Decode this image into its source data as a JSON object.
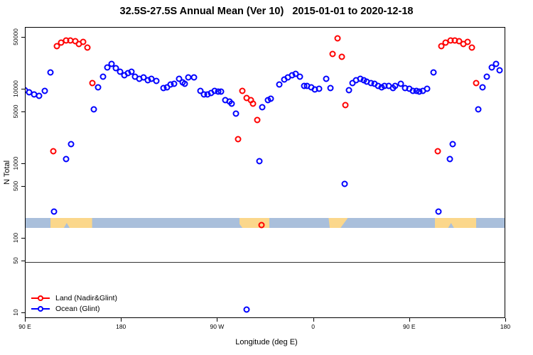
{
  "title": "32.5S-27.5S Annual Mean (Ver 10)   2015-01-01 to 2020-12-18",
  "axes": {
    "x": {
      "label": "Longitude (deg E)",
      "range_deg": [
        90,
        540
      ],
      "ticks": [
        {
          "d": 90,
          "label": "90 E"
        },
        {
          "d": 180,
          "label": "180"
        },
        {
          "d": 270,
          "label": "90 W"
        },
        {
          "d": 360,
          "label": "0"
        },
        {
          "d": 450,
          "label": "90 E"
        },
        {
          "d": 540,
          "label": "180"
        }
      ]
    },
    "y": {
      "label": "N Total",
      "scale": "log",
      "ticks": [
        {
          "v": 50000,
          "label": "50000"
        },
        {
          "v": 10000,
          "label": "10000"
        },
        {
          "v": 5000,
          "label": "5000"
        },
        {
          "v": 1000,
          "label": "1000"
        },
        {
          "v": 500,
          "label": "500"
        },
        {
          "v": 100,
          "label": "100"
        },
        {
          "v": 50,
          "label": "50"
        },
        {
          "v": 10,
          "label": "10"
        }
      ]
    }
  },
  "legend": [
    {
      "label": "Land (Nadir&Glint)",
      "color": "#FF0000"
    },
    {
      "label": "Ocean (Glint)",
      "color": "#0000FF"
    }
  ],
  "reference_line": {
    "value": 47
  },
  "map_strip": {
    "ocean_color": "#A9BFDB",
    "land_color": "#FBD78B",
    "land_segments": [
      {
        "from": 114,
        "to": 153,
        "shape": "australia"
      },
      {
        "from": 291,
        "to": 319,
        "shape": "samerica"
      },
      {
        "from": 374.5,
        "to": 392.5,
        "shape": "africa"
      },
      {
        "from": 474,
        "to": 513,
        "shape": "australia"
      }
    ]
  },
  "chart_data": {
    "type": "scatter",
    "title": "32.5S-27.5S Annual Mean (Ver 10)   2015-01-01 to 2020-12-18",
    "xlabel": "Longitude (deg E)",
    "ylabel": "N Total",
    "xlim": [
      90,
      540
    ],
    "ylim": [
      8,
      67000
    ],
    "yscale": "log",
    "note": "x axis spans 450 deg: 90E,180,90W,0,90E,180 — the 90E-180 segment repeats",
    "series": [
      {
        "name": "Land (Nadir&Glint)",
        "color": "#FF0000",
        "points": [
          [
            116.5,
            1450
          ],
          [
            120,
            37000
          ],
          [
            124,
            41500
          ],
          [
            128.5,
            44500
          ],
          [
            132.5,
            44500
          ],
          [
            137,
            43500
          ],
          [
            140.5,
            40000
          ],
          [
            144.5,
            42500
          ],
          [
            148.5,
            35500
          ],
          [
            153,
            11800
          ],
          [
            290,
            2100
          ],
          [
            294,
            9300
          ],
          [
            298,
            7500
          ],
          [
            301.5,
            7100
          ],
          [
            303.5,
            6300
          ],
          [
            308,
            3800
          ],
          [
            311.5,
            150
          ],
          [
            378.5,
            29000
          ],
          [
            383,
            47500
          ],
          [
            387,
            27000
          ],
          [
            390.5,
            6100
          ],
          [
            476.5,
            1450
          ],
          [
            480,
            37000
          ],
          [
            484,
            41500
          ],
          [
            488.5,
            44500
          ],
          [
            492.5,
            44500
          ],
          [
            497,
            43500
          ],
          [
            500.5,
            40000
          ],
          [
            504.5,
            42500
          ],
          [
            508.5,
            35500
          ],
          [
            513,
            11800
          ]
        ]
      },
      {
        "name": "Ocean (Glint)",
        "color": "#0000FF",
        "points": [
          [
            90,
            9500
          ],
          [
            94,
            8900
          ],
          [
            98.5,
            8300
          ],
          [
            103.5,
            8100
          ],
          [
            108.5,
            9400
          ],
          [
            114,
            16500
          ],
          [
            117.5,
            225
          ],
          [
            128.5,
            1150
          ],
          [
            133,
            1800
          ],
          [
            154.5,
            5300
          ],
          [
            158.5,
            10500
          ],
          [
            163,
            14500
          ],
          [
            167.5,
            19500
          ],
          [
            171.5,
            21500
          ],
          [
            175,
            19000
          ],
          [
            179.5,
            16800
          ],
          [
            183,
            15200
          ],
          [
            186.5,
            16200
          ],
          [
            190,
            16900
          ],
          [
            193,
            14600
          ],
          [
            197.5,
            13700
          ],
          [
            201.5,
            14300
          ],
          [
            205,
            13100
          ],
          [
            208.5,
            13700
          ],
          [
            213,
            12800
          ],
          [
            219.5,
            10300
          ],
          [
            223,
            10500
          ],
          [
            226.5,
            11500
          ],
          [
            229.5,
            11700
          ],
          [
            234.5,
            13700
          ],
          [
            237.5,
            12200
          ],
          [
            239.5,
            11700
          ],
          [
            243,
            14300
          ],
          [
            248.5,
            14300
          ],
          [
            254.5,
            9300
          ],
          [
            257.5,
            8300
          ],
          [
            261,
            8300
          ],
          [
            264.5,
            8700
          ],
          [
            267.5,
            9300
          ],
          [
            271,
            9100
          ],
          [
            274,
            9100
          ],
          [
            278,
            7100
          ],
          [
            281.5,
            6700
          ],
          [
            284,
            6300
          ],
          [
            287.5,
            4600
          ],
          [
            298,
            11
          ],
          [
            310,
            1070
          ],
          [
            312.5,
            5700
          ],
          [
            317.5,
            7100
          ],
          [
            320.5,
            7400
          ],
          [
            328,
            11500
          ],
          [
            333,
            13400
          ],
          [
            336.5,
            14300
          ],
          [
            340,
            15200
          ],
          [
            343.5,
            15800
          ],
          [
            347.5,
            14600
          ],
          [
            351.5,
            11000
          ],
          [
            354.5,
            10800
          ],
          [
            358,
            10500
          ],
          [
            361.5,
            9700
          ],
          [
            365.5,
            10100
          ],
          [
            372.5,
            13700
          ],
          [
            376,
            10300
          ],
          [
            389.5,
            530
          ],
          [
            393.5,
            9600
          ],
          [
            397,
            12000
          ],
          [
            400.5,
            13000
          ],
          [
            404,
            13700
          ],
          [
            407.5,
            13100
          ],
          [
            410.5,
            12400
          ],
          [
            414,
            11900
          ],
          [
            417.5,
            11700
          ],
          [
            421,
            11000
          ],
          [
            424,
            10500
          ],
          [
            427,
            10800
          ],
          [
            430.5,
            11000
          ],
          [
            434.5,
            10300
          ],
          [
            437,
            10800
          ],
          [
            442,
            11700
          ],
          [
            446,
            10300
          ],
          [
            450,
            9900
          ],
          [
            453.5,
            9400
          ],
          [
            456.5,
            9300
          ],
          [
            459.5,
            9100
          ],
          [
            463,
            9400
          ],
          [
            467,
            9900
          ],
          [
            472.5,
            16500
          ],
          [
            477.5,
            225
          ],
          [
            488,
            1150
          ],
          [
            491,
            1800
          ],
          [
            514.5,
            5300
          ],
          [
            518.5,
            10500
          ],
          [
            523,
            14500
          ],
          [
            527.5,
            19500
          ],
          [
            531.5,
            21500
          ],
          [
            535,
            17800
          ]
        ]
      }
    ]
  }
}
